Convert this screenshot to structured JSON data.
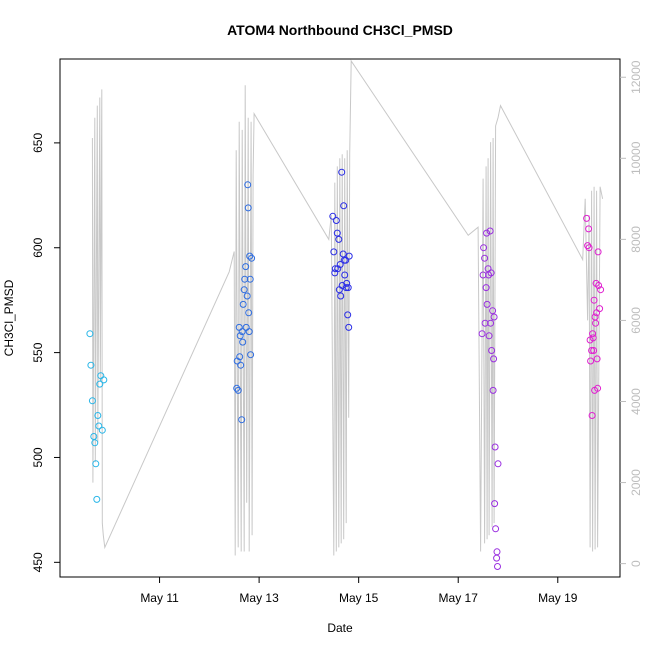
{
  "chart_data": {
    "type": "scatter",
    "title": "ATOM4 Northbound CH3Cl_PMSD",
    "xlabel": "Date",
    "ylabel": "CH3Cl_PMSD",
    "x_unit": "day of May",
    "xlim": [
      9.0,
      20.25
    ],
    "ylim": [
      443,
      690
    ],
    "y2lim": [
      -330,
      12450
    ],
    "x_ticks": [
      11,
      13,
      15,
      17,
      19
    ],
    "x_tick_labels": [
      "May 11",
      "May 13",
      "May 15",
      "May 17",
      "May 19"
    ],
    "y_ticks": [
      450,
      500,
      550,
      600,
      650
    ],
    "y_tick_labels": [
      "450",
      "500",
      "550",
      "600",
      "650"
    ],
    "y2_ticks": [
      0,
      2000,
      4000,
      6000,
      8000,
      10000,
      12000
    ],
    "y2_tick_labels": [
      "0",
      "2000",
      "4000",
      "6000",
      "8000",
      "10000",
      "12000"
    ],
    "grid": false,
    "legend": "none",
    "series": [
      {
        "color": "#29b6e8",
        "axis": "left",
        "x": [
          9.6,
          9.62,
          9.65,
          9.68,
          9.7,
          9.72,
          9.74,
          9.76,
          9.78,
          9.8,
          9.82,
          9.85,
          9.88
        ],
        "y": [
          559,
          544,
          527,
          510,
          507,
          497,
          480,
          520,
          515,
          535,
          539,
          513,
          537
        ]
      },
      {
        "color": "#2f6de0",
        "axis": "left",
        "x": [
          12.55,
          12.56,
          12.58,
          12.6,
          12.61,
          12.62,
          12.63,
          12.65,
          12.66,
          12.67,
          12.68,
          12.7,
          12.71,
          12.73,
          12.74,
          12.76,
          12.77,
          12.78,
          12.79,
          12.8,
          12.81,
          12.82,
          12.83,
          12.85
        ],
        "y": [
          533,
          546,
          532,
          562,
          548,
          558,
          544,
          518,
          560,
          555,
          573,
          580,
          585,
          591,
          562,
          577,
          630,
          619,
          569,
          560,
          596,
          585,
          549,
          595
        ]
      },
      {
        "color": "#2a2de6",
        "axis": "left",
        "x": [
          14.48,
          14.5,
          14.52,
          14.53,
          14.55,
          14.57,
          14.58,
          14.6,
          14.61,
          14.63,
          14.64,
          14.66,
          14.67,
          14.69,
          14.7,
          14.71,
          14.72,
          14.74,
          14.75,
          14.76,
          14.78,
          14.79,
          14.8,
          14.81
        ],
        "y": [
          615,
          598,
          588,
          590,
          613,
          607,
          590,
          604,
          580,
          592,
          577,
          636,
          582,
          597,
          620,
          594,
          587,
          594,
          581,
          583,
          568,
          581,
          562,
          596
        ]
      },
      {
        "color": "#9a2fe0",
        "axis": "left",
        "x": [
          17.48,
          17.5,
          17.51,
          17.53,
          17.54,
          17.56,
          17.57,
          17.58,
          17.6,
          17.61,
          17.62,
          17.64,
          17.65,
          17.66,
          17.67,
          17.69,
          17.7,
          17.71,
          17.72,
          17.73,
          17.74,
          17.75,
          17.77,
          17.78,
          17.79,
          17.8
        ],
        "y": [
          559,
          587,
          600,
          595,
          564,
          581,
          607,
          573,
          590,
          587,
          558,
          608,
          564,
          588,
          551,
          570,
          532,
          547,
          567,
          478,
          505,
          466,
          452,
          455,
          448,
          497
        ]
      },
      {
        "color": "#e020d0",
        "axis": "left",
        "x": [
          19.58,
          19.6,
          19.62,
          19.63,
          19.65,
          19.66,
          19.68,
          19.69,
          19.7,
          19.71,
          19.72,
          19.73,
          19.74,
          19.75,
          19.76,
          19.77,
          19.78,
          19.79,
          19.8,
          19.81,
          19.82,
          19.84,
          19.86
        ],
        "y": [
          614,
          601,
          609,
          600,
          556,
          546,
          551,
          520,
          559,
          557,
          551,
          575,
          532,
          567,
          564,
          583,
          569,
          547,
          533,
          598,
          582,
          571,
          580
        ]
      },
      {
        "color": "#c8c8c8",
        "axis": "right",
        "kind": "line",
        "x": [
          9.65,
          9.66,
          9.7,
          9.71,
          9.75,
          9.76,
          9.8,
          9.81,
          9.84,
          9.85,
          9.87,
          9.9,
          12.4,
          12.5,
          12.52,
          12.54,
          12.58,
          12.6,
          12.64,
          12.66,
          12.7,
          12.72,
          12.75,
          12.78,
          12.8,
          12.84,
          12.86,
          12.88,
          12.9,
          14.4,
          14.45,
          14.5,
          14.52,
          14.55,
          14.57,
          14.6,
          14.62,
          14.65,
          14.67,
          14.7,
          14.72,
          14.75,
          14.77,
          14.8,
          14.82,
          14.85,
          17.2,
          17.4,
          17.45,
          17.5,
          17.53,
          17.56,
          17.58,
          17.6,
          17.62,
          17.65,
          17.68,
          17.7,
          17.72,
          17.75,
          17.8,
          17.85,
          19.5,
          19.55,
          19.6,
          19.63,
          19.65,
          19.68,
          19.7,
          19.73,
          19.75,
          19.78,
          19.8,
          19.85,
          19.9
        ],
        "y": [
          10500,
          2000,
          11000,
          2500,
          11300,
          3000,
          11500,
          4500,
          11700,
          1000,
          700,
          400,
          7200,
          7700,
          200,
          10200,
          400,
          10900,
          300,
          10700,
          300,
          11800,
          1500,
          11000,
          300,
          10900,
          700,
          9600,
          11100,
          8000,
          8600,
          200,
          9400,
          300,
          9800,
          400,
          10000,
          500,
          10100,
          600,
          10000,
          1000,
          10200,
          3600,
          10100,
          12400,
          8100,
          8300,
          300,
          9500,
          500,
          9800,
          600,
          10000,
          700,
          10400,
          900,
          10500,
          1000,
          10800,
          11000,
          11300,
          7500,
          9000,
          6000,
          8600,
          400,
          9200,
          300,
          9300,
          350,
          9200,
          400,
          9300,
          9000
        ]
      }
    ]
  }
}
